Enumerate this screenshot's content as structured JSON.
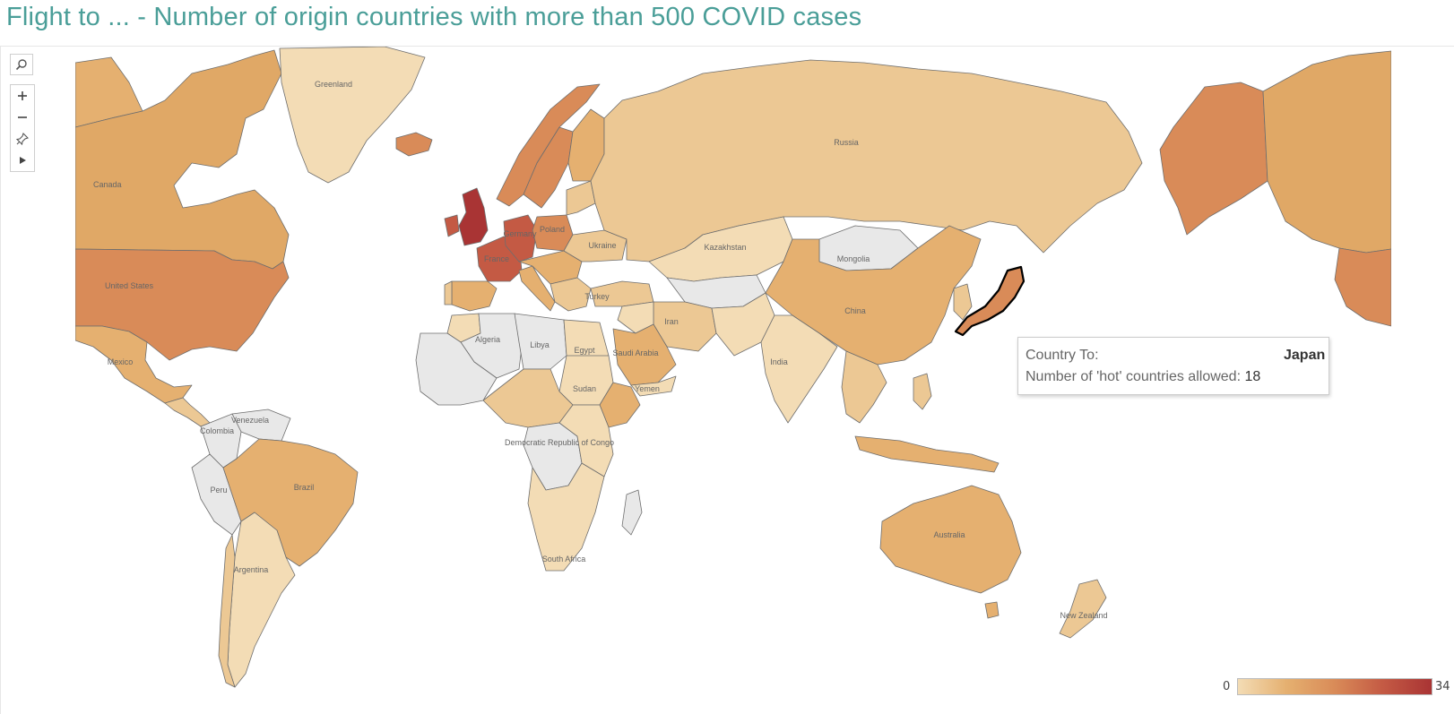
{
  "title": "Flight to ... - Number of origin countries with more than 500 COVID cases",
  "map": {
    "labels": {
      "greenland": "Greenland",
      "canada": "Canada",
      "united_states": "United States",
      "mexico": "Mexico",
      "venezuela": "Venezuela",
      "colombia": "Colombia",
      "peru": "Peru",
      "brazil": "Brazil",
      "argentina": "Argentina",
      "algeria": "Algeria",
      "libya": "Libya",
      "egypt": "Egypt",
      "sudan": "Sudan",
      "drc": "Democratic Republic of Congo",
      "south_africa": "South Africa",
      "yemen": "Yemen",
      "saudi_arabia": "Saudi Arabia",
      "iran": "Iran",
      "turkey": "Turkey",
      "ukraine": "Ukraine",
      "france": "France",
      "germany": "Germany",
      "poland": "Poland",
      "russia": "Russia",
      "kazakhstan": "Kazakhstan",
      "mongolia": "Mongolia",
      "china": "China",
      "india": "India",
      "australia": "Australia",
      "new_zealand": "New Zealand"
    },
    "colors": {
      "no_data": "#e8e8e8",
      "c0": "#f3dcb5",
      "c1": "#ecc894",
      "c2": "#e5b070",
      "c3": "#d98b58",
      "c4": "#c45a44",
      "c5": "#a93434",
      "border": "#6e6e6e",
      "ocean": "#ffffff"
    }
  },
  "toolbar": {
    "search_icon": "search-icon",
    "zoom_in_icon": "plus-icon",
    "zoom_out_icon": "minus-icon",
    "pin_icon": "pin-icon",
    "play_icon": "play-icon"
  },
  "tooltip": {
    "label1": "Country To:",
    "value1": "Japan",
    "label2": "Number of 'hot' countries allowed:",
    "value2": "18"
  },
  "legend": {
    "min": "0",
    "max": "34",
    "colors": [
      "#f3dcb5",
      "#e5b070",
      "#d98b58",
      "#c45a44",
      "#a93434"
    ]
  }
}
